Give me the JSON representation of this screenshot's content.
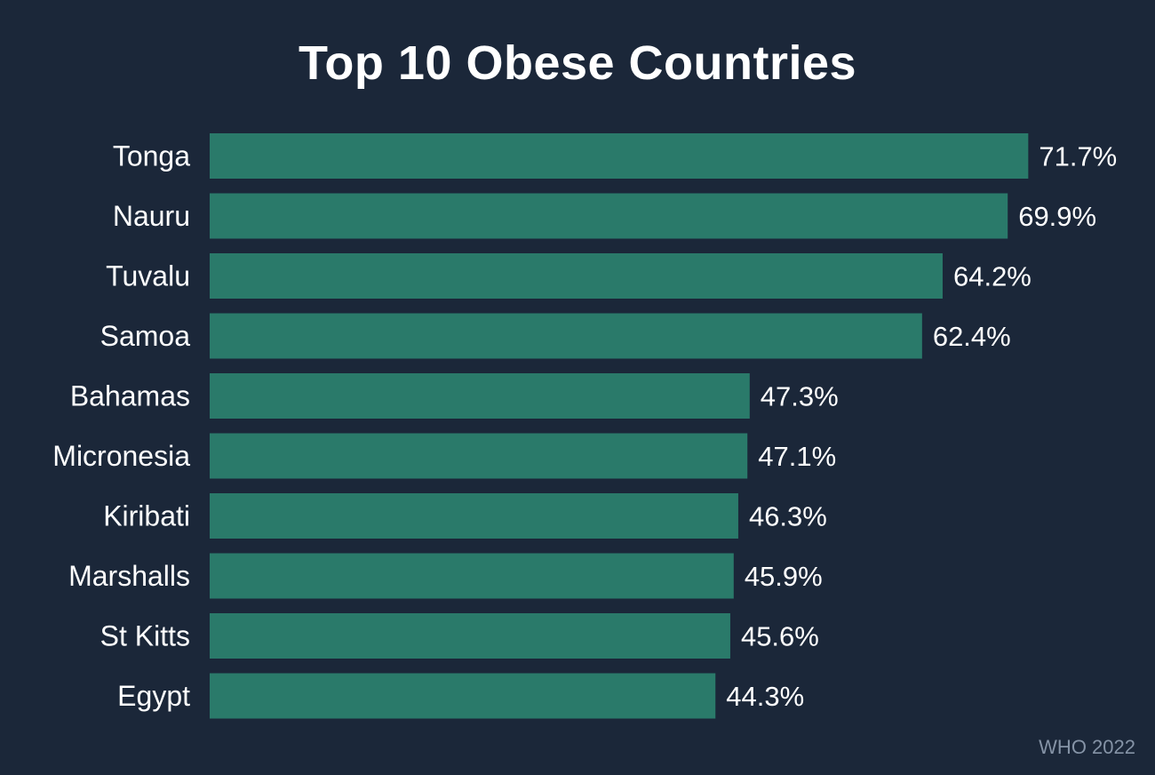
{
  "chart_data": {
    "type": "bar",
    "orientation": "horizontal",
    "title": "Top 10 Obese Countries",
    "categories": [
      "Tonga",
      "Nauru",
      "Tuvalu",
      "Samoa",
      "Bahamas",
      "Micronesia",
      "Kiribati",
      "Marshalls",
      "St Kitts",
      "Egypt"
    ],
    "values": [
      71.7,
      69.9,
      64.2,
      62.4,
      47.3,
      47.1,
      46.3,
      45.9,
      45.6,
      44.3
    ],
    "data_labels": [
      "71.7%",
      "69.9%",
      "64.2%",
      "62.4%",
      "47.3%",
      "47.1%",
      "46.3%",
      "45.9%",
      "45.6%",
      "44.3%"
    ],
    "unit": "%",
    "xlabel": "",
    "ylabel": "",
    "grid": false,
    "legend": "none",
    "source": "WHO 2022",
    "colors": {
      "background": "#1b2739",
      "bar": "#2a7a6a",
      "text": "#ffffff",
      "source": "#8593a6"
    }
  }
}
